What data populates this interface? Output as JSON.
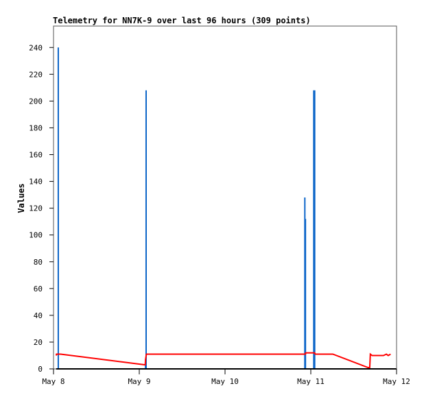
{
  "chart_data": {
    "type": "line",
    "title": "Telemetry for NN7K-9 over last 96 hours (309 points)",
    "xlabel": "",
    "ylabel": "Values",
    "xlim": [
      "May 8 00:00",
      "May 12 00:00"
    ],
    "ylim": [
      0,
      256
    ],
    "x_ticks": [
      "May 8",
      "May 9",
      "May 10",
      "May 11",
      "May 12"
    ],
    "y_ticks": [
      0,
      20,
      40,
      60,
      80,
      100,
      120,
      140,
      160,
      180,
      200,
      220,
      240
    ],
    "grid": false,
    "legend": "none",
    "series": [
      {
        "style": "impulse",
        "color": "#0a64c8",
        "points": [
          [
            "May 8 01:20",
            240
          ],
          [
            "May 9 01:45",
            7
          ],
          [
            "May 9 01:55",
            208
          ],
          [
            "May 10 22:20",
            128
          ],
          [
            "May 10 22:30",
            112
          ],
          [
            "May 11 00:50",
            208
          ],
          [
            "May 11 01:05",
            208
          ]
        ]
      },
      {
        "style": "line",
        "color": "#ff0000",
        "points": [
          [
            "May 8 00:45",
            10
          ],
          [
            "May 8 00:50",
            11
          ],
          [
            "May 8 02:00",
            11
          ],
          [
            "May 9 01:40",
            3
          ],
          [
            "May 9 01:45",
            7
          ],
          [
            "May 9 02:00",
            11
          ],
          [
            "May 10 22:30",
            11
          ],
          [
            "May 10 22:35",
            12
          ],
          [
            "May 11 01:05",
            12
          ],
          [
            "May 11 01:15",
            11
          ],
          [
            "May 11 06:10",
            11
          ],
          [
            "May 11 16:00",
            1
          ],
          [
            "May 11 16:30",
            1
          ],
          [
            "May 11 16:40",
            11
          ],
          [
            "May 11 17:10",
            10
          ],
          [
            "May 11 20:20",
            10
          ],
          [
            "May 11 21:10",
            11
          ],
          [
            "May 11 21:40",
            10
          ],
          [
            "May 11 22:20",
            11
          ]
        ]
      },
      {
        "style": "line",
        "color": "#000000",
        "points": [
          [
            "May 8 00:45",
            0
          ],
          [
            "May 11 23:55",
            0
          ]
        ]
      }
    ]
  }
}
